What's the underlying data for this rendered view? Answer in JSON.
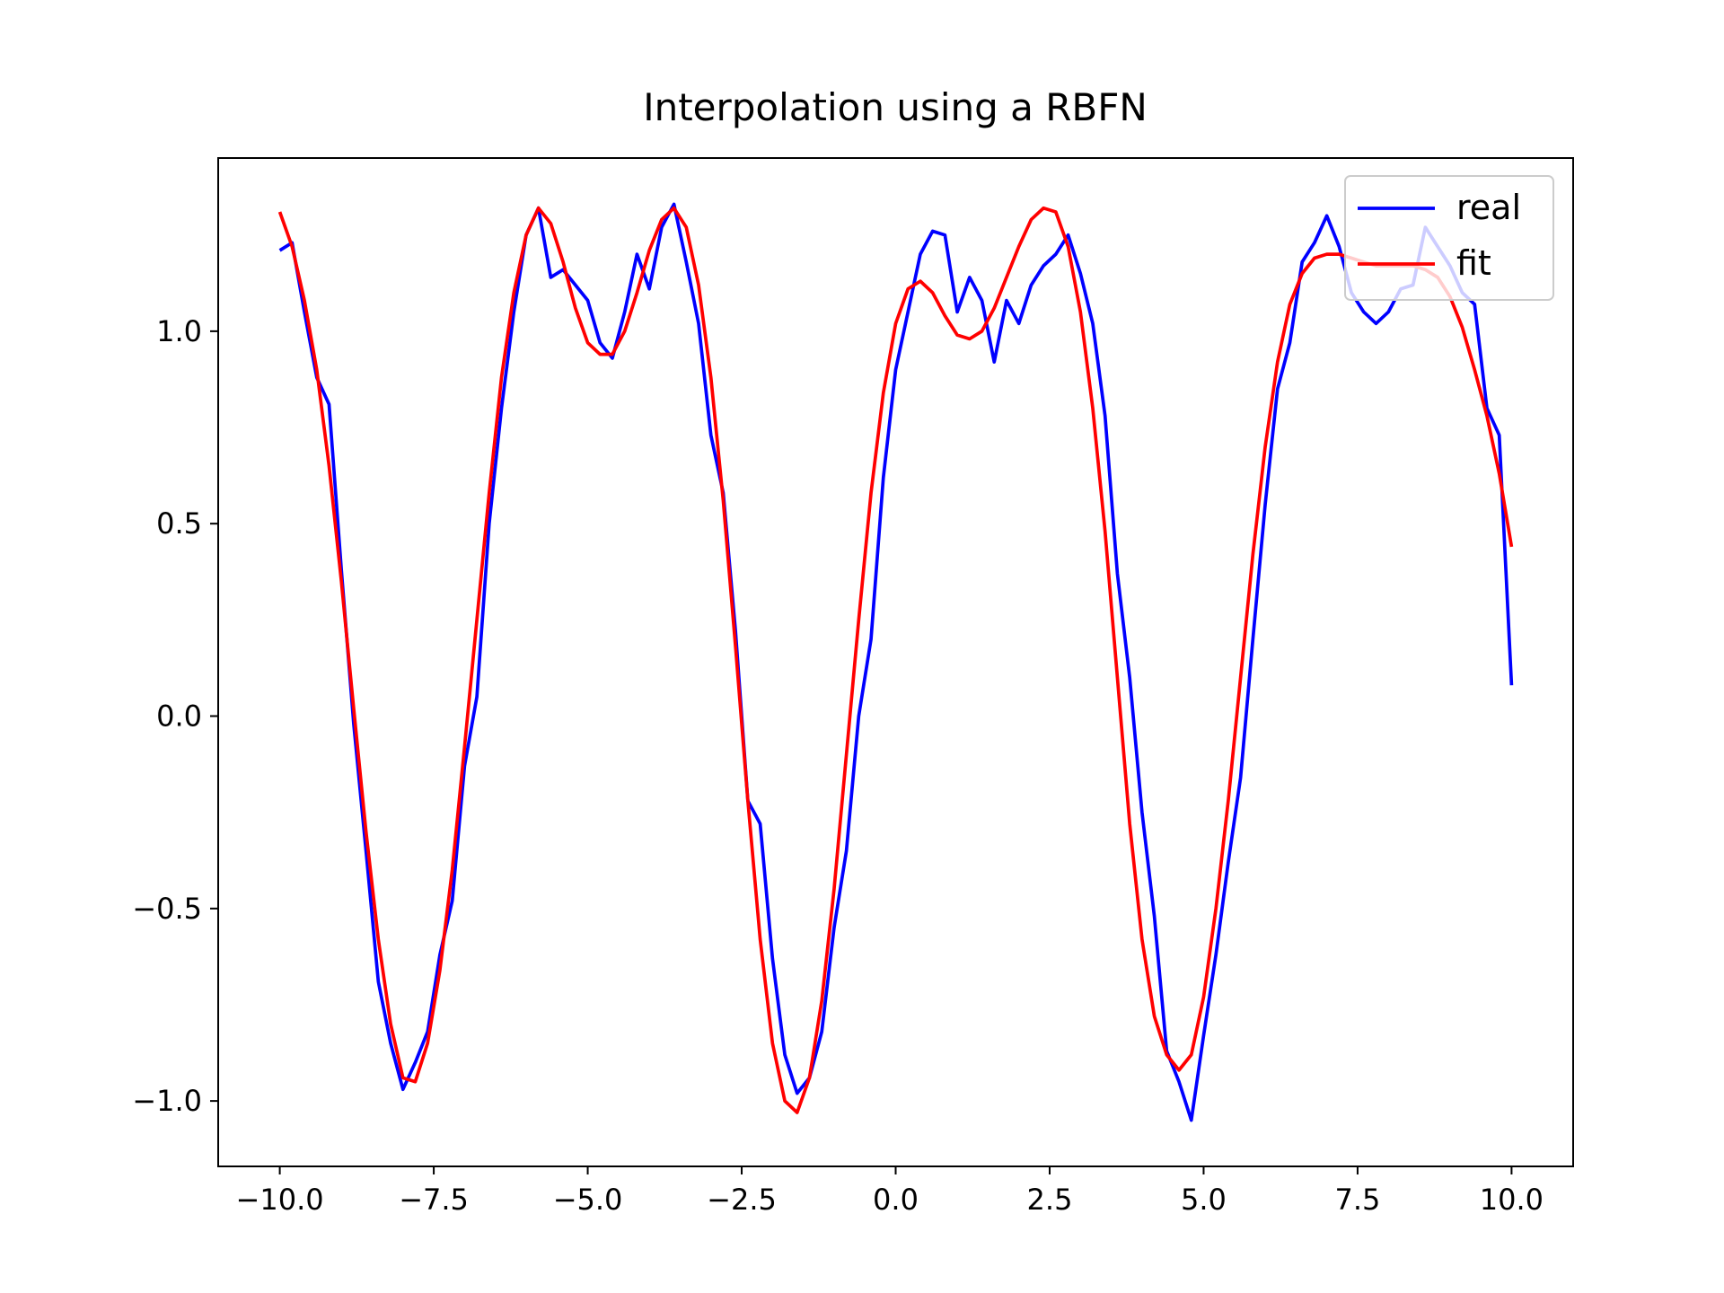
{
  "chart_data": {
    "type": "line",
    "title": "Interpolation using a RBFN",
    "x": [
      -10.0,
      -9.8,
      -9.6,
      -9.4,
      -9.2,
      -9.0,
      -8.8,
      -8.6,
      -8.4,
      -8.2,
      -8.0,
      -7.8,
      -7.6,
      -7.4,
      -7.2,
      -7.0,
      -6.8,
      -6.6,
      -6.4,
      -6.2,
      -6.0,
      -5.8,
      -5.6,
      -5.4,
      -5.2,
      -5.0,
      -4.8,
      -4.6,
      -4.4,
      -4.2,
      -4.0,
      -3.8,
      -3.6,
      -3.4,
      -3.2,
      -3.0,
      -2.8,
      -2.6,
      -2.4,
      -2.2,
      -2.0,
      -1.8,
      -1.6,
      -1.4,
      -1.2,
      -1.0,
      -0.8,
      -0.6,
      -0.4,
      -0.2,
      0.0,
      0.2,
      0.4,
      0.6,
      0.8,
      1.0,
      1.2,
      1.4,
      1.6,
      1.8,
      2.0,
      2.2,
      2.4,
      2.6,
      2.8,
      3.0,
      3.2,
      3.4,
      3.6,
      3.8,
      4.0,
      4.2,
      4.4,
      4.6,
      4.8,
      5.0,
      5.2,
      5.4,
      5.6,
      5.8,
      6.0,
      6.2,
      6.4,
      6.6,
      6.8,
      7.0,
      7.2,
      7.4,
      7.6,
      7.8,
      8.0,
      8.2,
      8.4,
      8.6,
      8.8,
      9.0,
      9.2,
      9.4,
      9.6,
      9.8,
      10.0
    ],
    "series": [
      {
        "name": "real",
        "color": "#0000ff",
        "values": [
          1.21,
          1.23,
          1.05,
          0.88,
          0.81,
          0.38,
          -0.02,
          -0.35,
          -0.69,
          -0.85,
          -0.97,
          -0.9,
          -0.82,
          -0.62,
          -0.48,
          -0.13,
          0.05,
          0.5,
          0.8,
          1.05,
          1.25,
          1.32,
          1.14,
          1.16,
          1.12,
          1.08,
          0.97,
          0.93,
          1.05,
          1.2,
          1.11,
          1.27,
          1.33,
          1.18,
          1.02,
          0.73,
          0.58,
          0.22,
          -0.22,
          -0.28,
          -0.63,
          -0.88,
          -0.98,
          -0.94,
          -0.82,
          -0.55,
          -0.35,
          0.0,
          0.2,
          0.62,
          0.9,
          1.05,
          1.2,
          1.26,
          1.25,
          1.05,
          1.14,
          1.08,
          0.92,
          1.08,
          1.02,
          1.12,
          1.17,
          1.2,
          1.25,
          1.15,
          1.02,
          0.78,
          0.37,
          0.1,
          -0.25,
          -0.52,
          -0.87,
          -0.95,
          -1.05,
          -0.83,
          -0.62,
          -0.38,
          -0.16,
          0.2,
          0.55,
          0.85,
          0.97,
          1.18,
          1.23,
          1.3,
          1.22,
          1.1,
          1.05,
          1.02,
          1.05,
          1.11,
          1.12,
          1.27,
          1.22,
          1.17,
          1.1,
          1.07,
          0.8,
          0.73,
          0.08
        ]
      },
      {
        "name": "fit",
        "color": "#ff0000",
        "values": [
          1.31,
          1.22,
          1.08,
          0.9,
          0.65,
          0.35,
          0.02,
          -0.3,
          -0.58,
          -0.8,
          -0.94,
          -0.95,
          -0.85,
          -0.66,
          -0.4,
          -0.08,
          0.25,
          0.58,
          0.88,
          1.1,
          1.25,
          1.32,
          1.28,
          1.18,
          1.06,
          0.97,
          0.94,
          0.94,
          1.0,
          1.1,
          1.21,
          1.29,
          1.32,
          1.27,
          1.12,
          0.88,
          0.56,
          0.18,
          -0.22,
          -0.58,
          -0.85,
          -1.0,
          -1.03,
          -0.94,
          -0.74,
          -0.45,
          -0.1,
          0.25,
          0.58,
          0.84,
          1.02,
          1.11,
          1.13,
          1.1,
          1.04,
          0.99,
          0.98,
          1.0,
          1.06,
          1.14,
          1.22,
          1.29,
          1.32,
          1.31,
          1.22,
          1.05,
          0.8,
          0.48,
          0.1,
          -0.28,
          -0.58,
          -0.78,
          -0.88,
          -0.92,
          -0.88,
          -0.73,
          -0.5,
          -0.22,
          0.1,
          0.42,
          0.7,
          0.92,
          1.07,
          1.15,
          1.19,
          1.2,
          1.2,
          1.19,
          1.18,
          1.17,
          1.17,
          1.17,
          1.17,
          1.16,
          1.14,
          1.09,
          1.01,
          0.9,
          0.78,
          0.63,
          0.44
        ]
      }
    ],
    "xlim": [
      -11.0,
      11.0
    ],
    "ylim": [
      -1.17,
      1.45
    ],
    "xticks": [
      {
        "value": -10,
        "label": "−10.0"
      },
      {
        "value": -7.5,
        "label": "−7.5"
      },
      {
        "value": -5,
        "label": "−5.0"
      },
      {
        "value": -2.5,
        "label": "−2.5"
      },
      {
        "value": 0,
        "label": "0.0"
      },
      2.5,
      {
        "value": 5,
        "label": "5.0"
      },
      7.5,
      {
        "value": 10,
        "label": "10.0"
      }
    ],
    "yticks": [
      {
        "value": -1,
        "label": "−1.0"
      },
      {
        "value": -0.5,
        "label": "−0.5"
      },
      {
        "value": 0,
        "label": "0.0"
      },
      0.5,
      {
        "value": 1,
        "label": "1.0"
      }
    ],
    "grid": false,
    "legend": "upper right"
  }
}
